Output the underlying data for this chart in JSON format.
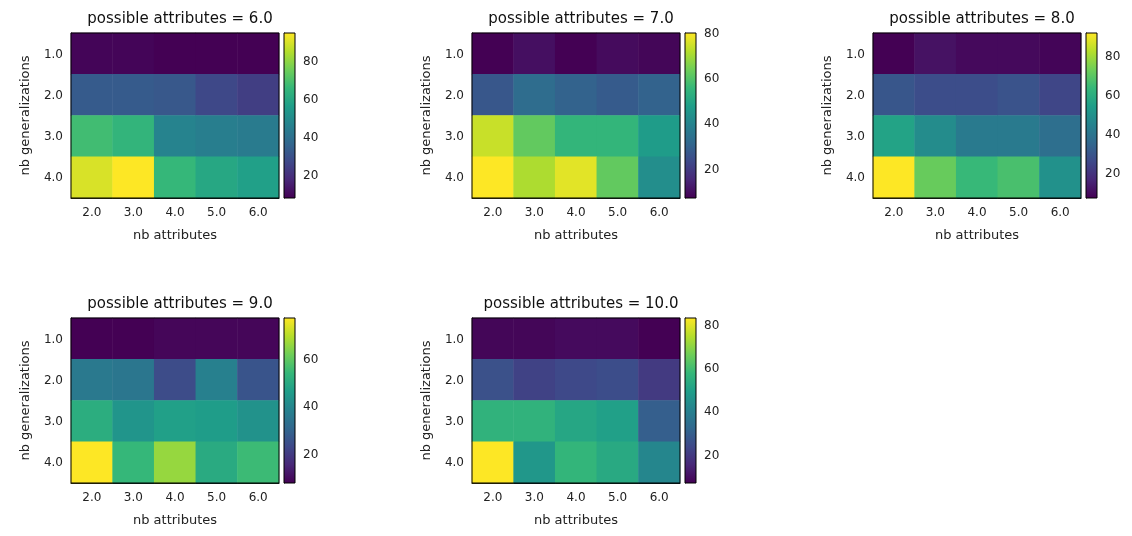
{
  "chart_data": [
    {
      "type": "heatmap",
      "title": "possible attributes = 6.0",
      "xlabel": "nb attributes",
      "ylabel": "nb generalizations",
      "categories": [
        "2.0",
        "3.0",
        "4.0",
        "5.0",
        "6.0"
      ],
      "y_categories": [
        "1.0",
        "2.0",
        "3.0",
        "4.0"
      ],
      "cells": [
        [
          9,
          9,
          8,
          8,
          8
        ],
        [
          33,
          33,
          32,
          27,
          24
        ],
        [
          68,
          65,
          47,
          45,
          44
        ],
        [
          90,
          95,
          66,
          60,
          57
        ]
      ],
      "clim": [
        8,
        95
      ],
      "cticks": [
        20,
        40,
        60,
        80
      ]
    },
    {
      "type": "heatmap",
      "title": "possible attributes = 7.0",
      "xlabel": "nb attributes",
      "ylabel": "nb generalizations",
      "categories": [
        "2.0",
        "3.0",
        "4.0",
        "5.0",
        "6.0"
      ],
      "y_categories": [
        "1.0",
        "2.0",
        "3.0",
        "4.0"
      ],
      "cells": [
        [
          7,
          10,
          7,
          9,
          8
        ],
        [
          27,
          33,
          30,
          28,
          30
        ],
        [
          74,
          62,
          55,
          55,
          47
        ],
        [
          80,
          71,
          77,
          62,
          43
        ]
      ],
      "clim": [
        7,
        80
      ],
      "cticks": [
        20,
        40,
        60,
        80
      ]
    },
    {
      "type": "heatmap",
      "title": "possible attributes = 8.0",
      "xlabel": "nb attributes",
      "ylabel": "nb generalizations",
      "categories": [
        "2.0",
        "3.0",
        "4.0",
        "5.0",
        "6.0"
      ],
      "y_categories": [
        "1.0",
        "2.0",
        "3.0",
        "4.0"
      ],
      "cells": [
        [
          7,
          11,
          9,
          9,
          8
        ],
        [
          30,
          27,
          27,
          29,
          25
        ],
        [
          56,
          48,
          42,
          42,
          38
        ],
        [
          92,
          72,
          64,
          67,
          50
        ]
      ],
      "clim": [
        7,
        92
      ],
      "cticks": [
        20,
        40,
        60,
        80
      ]
    },
    {
      "type": "heatmap",
      "title": "possible attributes = 9.0",
      "xlabel": "nb attributes",
      "ylabel": "nb generalizations",
      "categories": [
        "2.0",
        "3.0",
        "4.0",
        "5.0",
        "6.0"
      ],
      "y_categories": [
        "1.0",
        "2.0",
        "3.0",
        "4.0"
      ],
      "cells": [
        [
          8,
          8,
          9,
          9,
          9
        ],
        [
          36,
          35,
          24,
          38,
          26
        ],
        [
          51,
          44,
          47,
          46,
          43
        ],
        [
          77,
          54,
          66,
          50,
          55
        ]
      ],
      "clim": [
        8,
        77
      ],
      "cticks": [
        20,
        40,
        60
      ]
    },
    {
      "type": "heatmap",
      "title": "possible attributes = 10.0",
      "xlabel": "nb attributes",
      "ylabel": "nb generalizations",
      "categories": [
        "2.0",
        "3.0",
        "4.0",
        "5.0",
        "6.0"
      ],
      "y_categories": [
        "1.0",
        "2.0",
        "3.0",
        "4.0"
      ],
      "cells": [
        [
          8,
          8,
          9,
          9,
          7
        ],
        [
          26,
          22,
          24,
          25,
          20
        ],
        [
          56,
          56,
          52,
          50,
          30
        ],
        [
          83,
          47,
          57,
          53,
          42
        ]
      ],
      "clim": [
        7,
        83
      ],
      "cticks": [
        20,
        40,
        60,
        80
      ]
    }
  ]
}
